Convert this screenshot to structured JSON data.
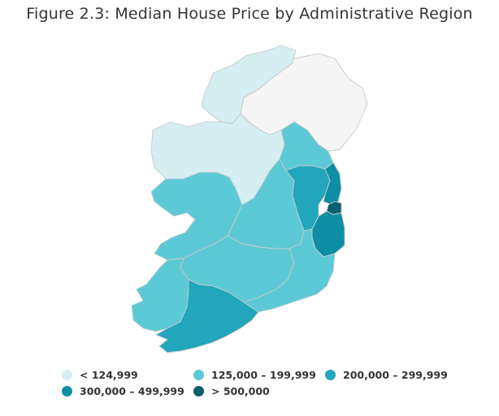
{
  "title": "Figure 2.3: Median House Price by Administrative Region",
  "colors": {
    "band1": "#d4eef2",
    "band2": "#5ccad6",
    "band3": "#21a6bb",
    "band4": "#0d8ea4",
    "band5": "#0b5f6e",
    "no_data": "#f5f5f5",
    "border": "#c9c9c9"
  },
  "legend": [
    {
      "label": "< 124,999",
      "color": "#d4eef2"
    },
    {
      "label": "125,000 – 199,999",
      "color": "#5ccad6"
    },
    {
      "label": "200,000 – 299,999",
      "color": "#21a6bb"
    },
    {
      "label": "300,000 – 499,999",
      "color": "#0d8ea4"
    },
    {
      "label": "> 500,000",
      "color": "#0b5f6e"
    }
  ]
}
